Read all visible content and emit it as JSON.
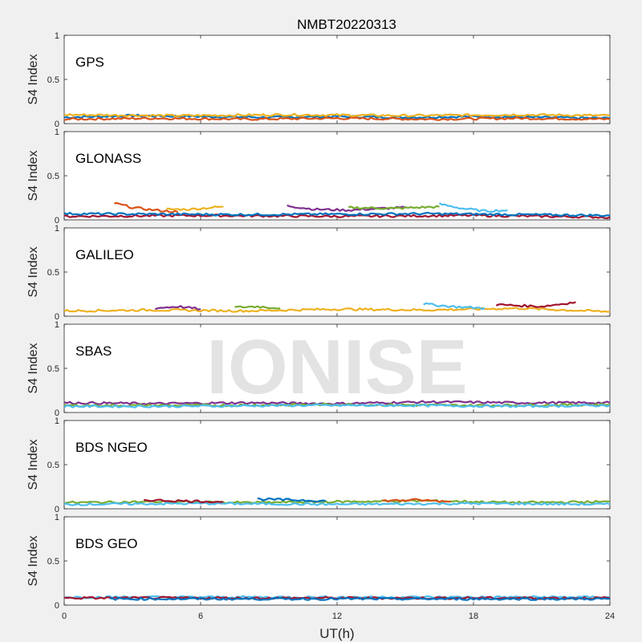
{
  "chart_data": {
    "type": "line",
    "title": "NMBT20220313",
    "xlabel": "UT(h)",
    "ylabel": "S4 Index",
    "xlim": [
      0,
      24
    ],
    "ylim": [
      0,
      1
    ],
    "x_ticks": [
      "0",
      "6",
      "12",
      "18",
      "24"
    ],
    "x_tick_values": [
      0,
      6,
      12,
      18,
      24
    ],
    "y_ticks": [
      "0",
      "0.5",
      "1"
    ],
    "y_tick_values": [
      0,
      0.5,
      1
    ],
    "series_colors": [
      "#0072BD",
      "#D95319",
      "#EDB120",
      "#7E2F8E",
      "#77AC30",
      "#4DBEEE",
      "#A2142F"
    ],
    "panels": [
      {
        "name": "GPS",
        "tracks": [
          {
            "x": [
              0,
              3,
              6,
              9,
              12,
              15,
              18,
              21,
              24
            ],
            "y": [
              0.07,
              0.09,
              0.08,
              0.07,
              0.08,
              0.07,
              0.08,
              0.07,
              0.06
            ]
          },
          {
            "x": [
              0,
              4,
              8,
              12,
              16,
              20,
              24
            ],
            "y": [
              0.05,
              0.06,
              0.05,
              0.06,
              0.05,
              0.06,
              0.05
            ]
          },
          {
            "x": [
              0,
              5,
              10,
              15,
              20,
              24
            ],
            "y": [
              0.1,
              0.09,
              0.1,
              0.09,
              0.1,
              0.09
            ]
          }
        ]
      },
      {
        "name": "GLONASS",
        "tracks": [
          {
            "x": [
              2.2,
              3.0,
              4.0,
              5.0
            ],
            "y": [
              0.19,
              0.14,
              0.11,
              0.09
            ]
          },
          {
            "x": [
              4.5,
              5.5,
              7.0
            ],
            "y": [
              0.12,
              0.12,
              0.15
            ]
          },
          {
            "x": [
              9.8,
              11.0,
              12.5,
              14.0,
              15.0
            ],
            "y": [
              0.16,
              0.12,
              0.11,
              0.13,
              0.14
            ]
          },
          {
            "x": [
              12.5,
              14.5,
              16.5
            ],
            "y": [
              0.14,
              0.13,
              0.15
            ]
          },
          {
            "x": [
              16.5,
              17.5,
              18.5,
              19.5
            ],
            "y": [
              0.18,
              0.13,
              0.1,
              0.11
            ]
          },
          {
            "x": [
              0,
              6,
              12,
              18,
              24
            ],
            "y": [
              0.04,
              0.05,
              0.04,
              0.05,
              0.03
            ]
          },
          {
            "x": [
              0,
              8,
              16,
              24
            ],
            "y": [
              0.07,
              0.06,
              0.07,
              0.05
            ]
          }
        ]
      },
      {
        "name": "GALILEO",
        "tracks": [
          {
            "x": [
              0,
              4,
              8,
              12,
              16,
              20,
              24
            ],
            "y": [
              0.06,
              0.07,
              0.06,
              0.08,
              0.07,
              0.09,
              0.05
            ]
          },
          {
            "x": [
              4.0,
              5.0,
              6.0
            ],
            "y": [
              0.09,
              0.11,
              0.08
            ]
          },
          {
            "x": [
              7.5,
              8.5,
              9.5
            ],
            "y": [
              0.1,
              0.11,
              0.09
            ]
          },
          {
            "x": [
              15.8,
              17.0,
              18.5
            ],
            "y": [
              0.14,
              0.11,
              0.09
            ]
          },
          {
            "x": [
              19.0,
              21.0,
              22.5
            ],
            "y": [
              0.13,
              0.11,
              0.16
            ]
          }
        ]
      },
      {
        "name": "SBAS",
        "tracks": [
          {
            "x": [
              0,
              4,
              8,
              12,
              16,
              20,
              24
            ],
            "y": [
              0.11,
              0.1,
              0.11,
              0.1,
              0.12,
              0.11,
              0.11
            ]
          },
          {
            "x": [
              0,
              6,
              12,
              18,
              24
            ],
            "y": [
              0.08,
              0.08,
              0.09,
              0.08,
              0.09
            ]
          },
          {
            "x": [
              0,
              5,
              10,
              15,
              20,
              24
            ],
            "y": [
              0.07,
              0.07,
              0.08,
              0.08,
              0.07,
              0.08
            ]
          }
        ]
      },
      {
        "name": "BDS NGEO",
        "tracks": [
          {
            "x": [
              0,
              4,
              8,
              12,
              16,
              20,
              24
            ],
            "y": [
              0.07,
              0.08,
              0.07,
              0.08,
              0.09,
              0.07,
              0.08
            ]
          },
          {
            "x": [
              0,
              6,
              12,
              18,
              24
            ],
            "y": [
              0.05,
              0.06,
              0.05,
              0.06,
              0.05
            ]
          },
          {
            "x": [
              3.5,
              5.0,
              7.0
            ],
            "y": [
              0.1,
              0.09,
              0.08
            ]
          },
          {
            "x": [
              8.5,
              10.0,
              11.5
            ],
            "y": [
              0.11,
              0.1,
              0.09
            ]
          },
          {
            "x": [
              14.0,
              15.5,
              17.0
            ],
            "y": [
              0.09,
              0.1,
              0.08
            ]
          }
        ]
      },
      {
        "name": "BDS GEO",
        "tracks": [
          {
            "x": [
              0,
              6,
              12,
              18,
              24
            ],
            "y": [
              0.09,
              0.09,
              0.09,
              0.09,
              0.09
            ]
          },
          {
            "x": [
              0,
              6,
              12,
              18,
              24
            ],
            "y": [
              0.08,
              0.08,
              0.08,
              0.08,
              0.08
            ]
          },
          {
            "x": [
              2,
              8,
              14,
              20,
              24
            ],
            "y": [
              0.07,
              0.07,
              0.07,
              0.07,
              0.07
            ]
          }
        ]
      }
    ]
  },
  "watermark": "IONISE"
}
